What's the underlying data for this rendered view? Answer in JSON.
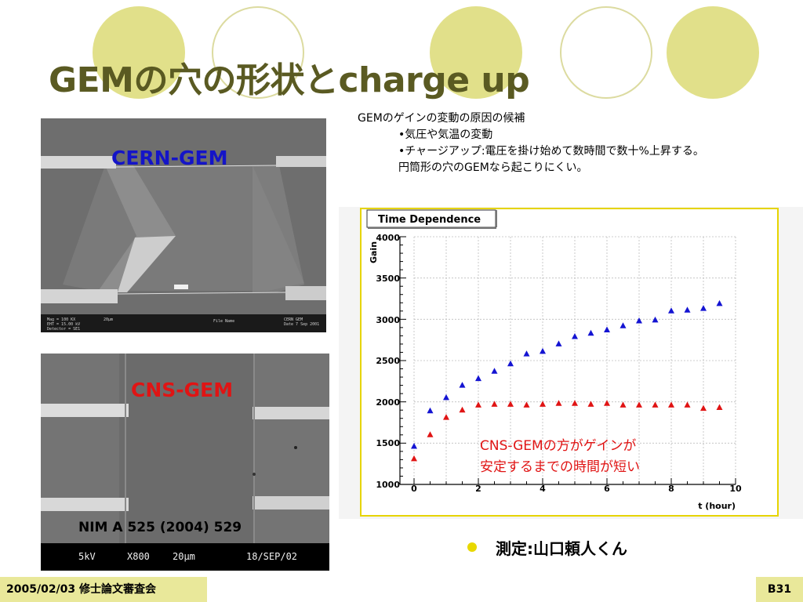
{
  "slide": {
    "title": "GEMの穴の形状とcharge up",
    "footer_date": "2005/02/03 修士論文審査会",
    "page": "B31",
    "accent_color": "#e1e08a",
    "title_color": "#5a5a22"
  },
  "images": {
    "cern_label": "CERN-GEM",
    "cns_label": "CNS-GEM",
    "cns_reference": "NIM A 525 (2004) 529",
    "cns_info": [
      "5kV",
      "X800",
      "20μm",
      "18/SEP/02"
    ]
  },
  "notes": {
    "line1": "GEMのゲインの変動の原因の候補",
    "line2": "•気圧や気温の変動",
    "line3": "•チャージアップ:電圧を掛け始めて数時間で数十%上昇する。",
    "line4": "円筒形の穴のGEMなら起こりにくい。"
  },
  "bullet": {
    "text": "測定:山口頼人くん",
    "color": "#e8d800"
  },
  "chart_data": {
    "type": "scatter",
    "title": "Time Dependence",
    "xlabel": "t (hour)",
    "ylabel": "Gain",
    "xlim": [
      0,
      10
    ],
    "ylim": [
      1000,
      4000
    ],
    "x_ticks": [
      "0",
      "2",
      "4",
      "6",
      "8",
      "10"
    ],
    "y_ticks": [
      "1000",
      "1500",
      "2000",
      "2500",
      "3000",
      "3500",
      "4000"
    ],
    "grid": true,
    "annotation": [
      "CNS-GEMの方がゲインが",
      "安定するまでの時間が短い"
    ],
    "annotation_color": "#e01414",
    "series": [
      {
        "color": "#1414d2",
        "marker": "triangle",
        "points": [
          [
            0,
            1460
          ],
          [
            0.5,
            1890
          ],
          [
            1,
            2050
          ],
          [
            1.5,
            2200
          ],
          [
            2,
            2280
          ],
          [
            2.5,
            2370
          ],
          [
            3,
            2460
          ],
          [
            3.5,
            2580
          ],
          [
            4,
            2610
          ],
          [
            4.5,
            2700
          ],
          [
            5,
            2790
          ],
          [
            5.5,
            2830
          ],
          [
            6,
            2870
          ],
          [
            6.5,
            2920
          ],
          [
            7,
            2980
          ],
          [
            7.5,
            2990
          ],
          [
            8,
            3100
          ],
          [
            8.5,
            3110
          ],
          [
            9,
            3130
          ],
          [
            9.5,
            3190
          ]
        ]
      },
      {
        "color": "#e01414",
        "marker": "triangle",
        "points": [
          [
            0,
            1310
          ],
          [
            0.5,
            1600
          ],
          [
            1,
            1810
          ],
          [
            1.5,
            1900
          ],
          [
            2,
            1960
          ],
          [
            2.5,
            1970
          ],
          [
            3,
            1970
          ],
          [
            3.5,
            1960
          ],
          [
            4,
            1970
          ],
          [
            4.5,
            1980
          ],
          [
            5,
            1980
          ],
          [
            5.5,
            1970
          ],
          [
            6,
            1980
          ],
          [
            6.5,
            1960
          ],
          [
            7,
            1960
          ],
          [
            7.5,
            1960
          ],
          [
            8,
            1960
          ],
          [
            8.5,
            1960
          ],
          [
            9,
            1920
          ],
          [
            9.5,
            1930
          ]
        ]
      }
    ]
  }
}
